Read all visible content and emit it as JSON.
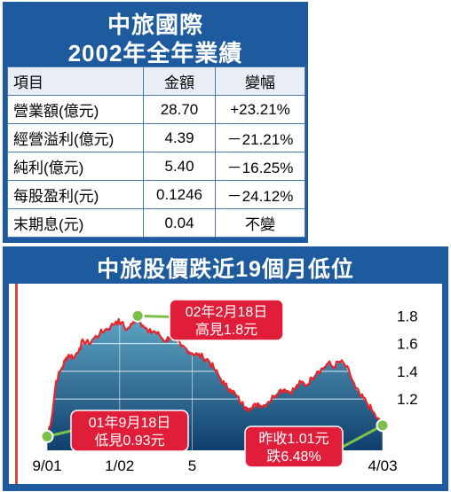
{
  "table": {
    "title_line1": "中旅國際",
    "title_line2": "2002年全年業績",
    "headers": [
      "項目",
      "金額",
      "變幅"
    ],
    "rows": [
      {
        "item": "營業額(億元)",
        "amount": "28.70",
        "change": "+23.21%"
      },
      {
        "item": "經營溢利(億元)",
        "amount": "4.39",
        "change": "－21.21%"
      },
      {
        "item": "純利(億元)",
        "amount": "5.40",
        "change": "－16.25%"
      },
      {
        "item": "每股盈利(元)",
        "amount": "0.1246",
        "change": "－24.12%"
      },
      {
        "item": "末期息(元)",
        "amount": "0.04",
        "change": "不變"
      }
    ]
  },
  "chart_data": {
    "type": "line",
    "title": "中旅股價跌近19個月低位",
    "xlabel": "",
    "ylabel": "",
    "ylim": [
      0.83,
      1.93
    ],
    "y_ticks": [
      1.2,
      1.4,
      1.6,
      1.8
    ],
    "y_tick_labels": [
      "1.2",
      "1.4",
      "1.6",
      "1.8"
    ],
    "x_range": [
      0,
      18.5
    ],
    "x_ticks": [
      0,
      4,
      8,
      18.5
    ],
    "x_tick_labels": [
      "9/01",
      "1/02",
      "5",
      "4/03"
    ],
    "grid": true,
    "legend": "none",
    "series": [
      {
        "values": [
          [
            0.0,
            0.93
          ],
          [
            0.25,
            1.06
          ],
          [
            0.5,
            1.33
          ],
          [
            0.8,
            1.42
          ],
          [
            1.0,
            1.48
          ],
          [
            1.2,
            1.52
          ],
          [
            1.5,
            1.5
          ],
          [
            1.8,
            1.57
          ],
          [
            2.0,
            1.62
          ],
          [
            2.3,
            1.6
          ],
          [
            2.6,
            1.64
          ],
          [
            2.9,
            1.67
          ],
          [
            3.2,
            1.7
          ],
          [
            3.5,
            1.72
          ],
          [
            3.8,
            1.76
          ],
          [
            4.1,
            1.75
          ],
          [
            4.4,
            1.7
          ],
          [
            4.7,
            1.74
          ],
          [
            5.0,
            1.8
          ],
          [
            5.3,
            1.73
          ],
          [
            5.6,
            1.68
          ],
          [
            5.9,
            1.69
          ],
          [
            6.2,
            1.66
          ],
          [
            6.5,
            1.62
          ],
          [
            6.8,
            1.65
          ],
          [
            7.1,
            1.62
          ],
          [
            7.4,
            1.58
          ],
          [
            7.7,
            1.56
          ],
          [
            8.0,
            1.53
          ],
          [
            8.3,
            1.52
          ],
          [
            8.6,
            1.5
          ],
          [
            8.9,
            1.48
          ],
          [
            9.2,
            1.42
          ],
          [
            9.5,
            1.36
          ],
          [
            9.8,
            1.3
          ],
          [
            10.1,
            1.27
          ],
          [
            10.4,
            1.23
          ],
          [
            10.7,
            1.17
          ],
          [
            11.0,
            1.14
          ],
          [
            11.3,
            1.13
          ],
          [
            11.6,
            1.17
          ],
          [
            11.9,
            1.15
          ],
          [
            12.2,
            1.18
          ],
          [
            12.5,
            1.22
          ],
          [
            12.8,
            1.26
          ],
          [
            13.1,
            1.27
          ],
          [
            13.4,
            1.25
          ],
          [
            13.7,
            1.28
          ],
          [
            14.0,
            1.32
          ],
          [
            14.3,
            1.3
          ],
          [
            14.6,
            1.35
          ],
          [
            14.9,
            1.4
          ],
          [
            15.2,
            1.42
          ],
          [
            15.5,
            1.46
          ],
          [
            15.8,
            1.43
          ],
          [
            16.1,
            1.47
          ],
          [
            16.4,
            1.45
          ],
          [
            16.7,
            1.38
          ],
          [
            17.0,
            1.28
          ],
          [
            17.3,
            1.22
          ],
          [
            17.6,
            1.18
          ],
          [
            17.9,
            1.12
          ],
          [
            18.2,
            1.06
          ],
          [
            18.5,
            1.01
          ]
        ]
      }
    ],
    "annotations": [
      {
        "line1": "01年9月18日",
        "line2": "低見0.93元",
        "x": 0.0,
        "y": 0.93
      },
      {
        "line1": "02年2月18日",
        "line2": "高見1.8元",
        "x": 5.0,
        "y": 1.8
      },
      {
        "line1": "昨收1.01元",
        "line2": "跌6.48%",
        "x": 18.5,
        "y": 1.01
      }
    ],
    "colors": {
      "line": "#e8252a",
      "area_top": "#5fa6c4",
      "area_bottom": "#0f3f6d",
      "marker": "#7cc04a",
      "callout": "#e01e3a",
      "frame": "#1d5a9e"
    }
  }
}
